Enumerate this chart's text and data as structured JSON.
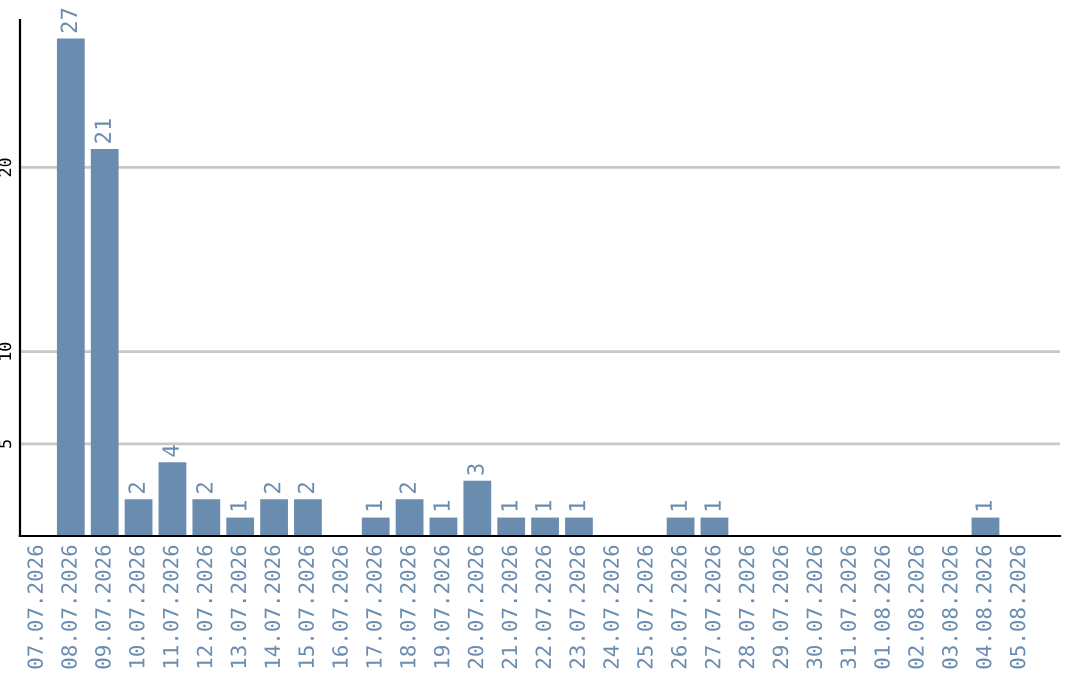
{
  "chart_data": {
    "type": "bar",
    "categories": [
      "07.07.2026",
      "08.07.2026",
      "09.07.2026",
      "10.07.2026",
      "11.07.2026",
      "12.07.2026",
      "13.07.2026",
      "14.07.2026",
      "15.07.2026",
      "16.07.2026",
      "17.07.2026",
      "18.07.2026",
      "19.07.2026",
      "20.07.2026",
      "21.07.2026",
      "22.07.2026",
      "23.07.2026",
      "24.07.2026",
      "25.07.2026",
      "26.07.2026",
      "27.07.2026",
      "28.07.2026",
      "29.07.2026",
      "30.07.2026",
      "31.07.2026",
      "01.08.2026",
      "02.08.2026",
      "03.08.2026",
      "04.08.2026",
      "05.08.2026"
    ],
    "values": [
      0,
      27,
      21,
      2,
      4,
      2,
      1,
      2,
      2,
      0,
      1,
      2,
      1,
      3,
      1,
      1,
      1,
      0,
      0,
      1,
      1,
      0,
      0,
      0,
      0,
      0,
      0,
      0,
      1,
      0
    ],
    "value_labels": [
      null,
      "27",
      "21",
      "2",
      "4",
      "2",
      "1",
      "2",
      "2",
      null,
      "1",
      "2",
      "1",
      "3",
      "1",
      "1",
      "1",
      null,
      null,
      "1",
      "1",
      null,
      null,
      null,
      null,
      null,
      null,
      null,
      "1",
      null
    ],
    "color": "#6a8caf",
    "ylim": [
      0,
      28
    ],
    "yticks": [
      5,
      10,
      20
    ],
    "grid": "y",
    "legend": false
  }
}
